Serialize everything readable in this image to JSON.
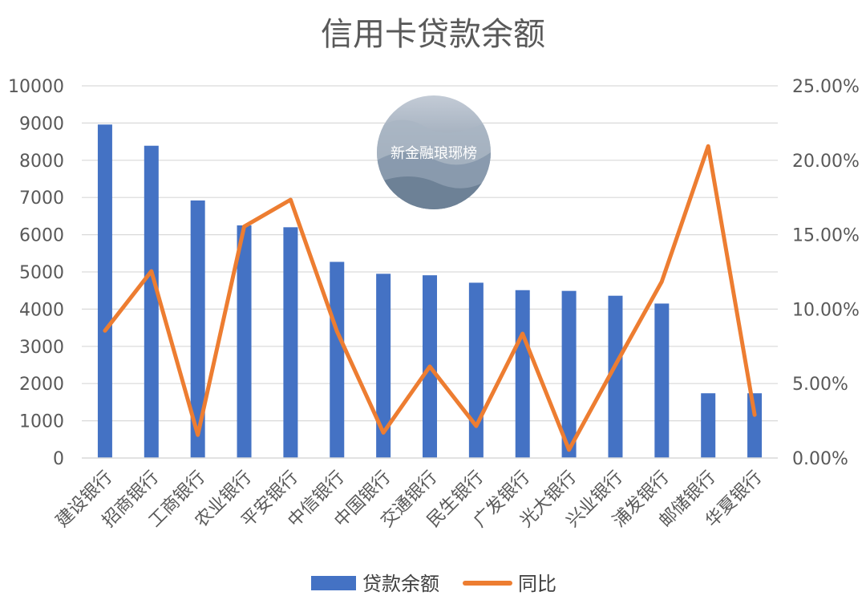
{
  "chart_data": {
    "type": "bar",
    "title": "信用卡贷款余额",
    "categories": [
      "建设银行",
      "招商银行",
      "工商银行",
      "农业银行",
      "平安银行",
      "中信银行",
      "中国银行",
      "交通银行",
      "民生银行",
      "广发银行",
      "光大银行",
      "兴业银行",
      "浦发银行",
      "邮储银行",
      "华夏银行"
    ],
    "series": [
      {
        "name": "贷款余额",
        "type": "bar",
        "axis": "left",
        "color": "#4472C4",
        "values": [
          8960,
          8390,
          6920,
          6250,
          6200,
          5270,
          4950,
          4910,
          4710,
          4510,
          4490,
          4360,
          4150,
          1740,
          1740
        ]
      },
      {
        "name": "同比",
        "type": "line",
        "axis": "right",
        "color": "#ED7D31",
        "values": [
          0.0855,
          0.1255,
          0.0155,
          0.1555,
          0.1735,
          0.085,
          0.017,
          0.0615,
          0.0215,
          0.0835,
          0.0055,
          0.0625,
          0.1185,
          0.2095,
          0.029
        ]
      }
    ],
    "y_left": {
      "min": 0,
      "max": 10000,
      "step": 1000,
      "tick_labels": [
        "0",
        "1000",
        "2000",
        "3000",
        "4000",
        "5000",
        "6000",
        "7000",
        "8000",
        "9000",
        "10000"
      ]
    },
    "y_right": {
      "min": 0,
      "max": 0.25,
      "step": 0.05,
      "tick_labels": [
        "0.00%",
        "5.00%",
        "10.00%",
        "15.00%",
        "20.00%",
        "25.00%"
      ]
    },
    "grid": true,
    "legend_position": "bottom"
  },
  "watermark": {
    "text": "新金融琅琊榜"
  }
}
